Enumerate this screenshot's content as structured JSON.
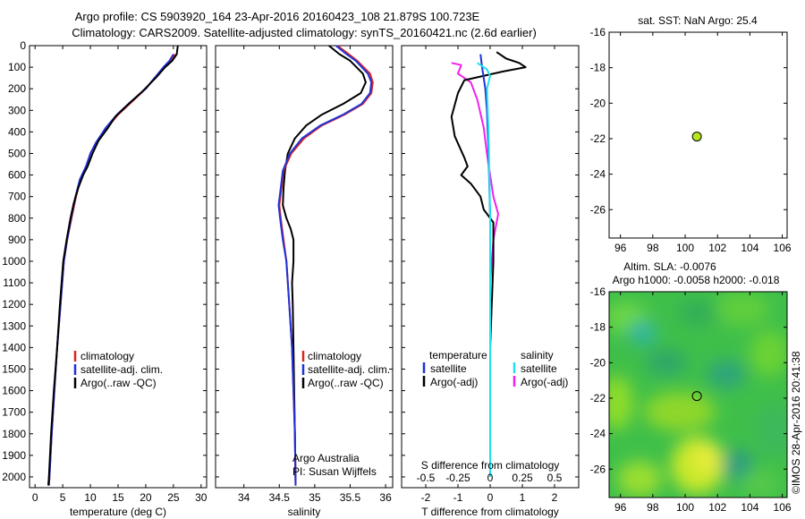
{
  "title": {
    "line1": "Argo profile: CS 5903920_164 23-Apr-2016 20160423_108 21.879S 100.723E",
    "line2": "Climatology: CARS2009. Satellite-adjusted climatology: synTS_20160421.nc (2.6d earlier)"
  },
  "colors": {
    "climatology": "#dd2222",
    "satellite": "#1f33d8",
    "argo": "#000000",
    "sal_satellite": "#22e0ee",
    "sal_argo": "#ee22ee",
    "marker": "#b5e61d"
  },
  "chart_data": [
    {
      "type": "line",
      "id": "temperature",
      "xlabel": "temperature (deg C)",
      "ylabel": "",
      "xlim": [
        -1,
        31
      ],
      "ylim": [
        2050,
        0
      ],
      "xticks": [
        0,
        5,
        10,
        15,
        20,
        25,
        30
      ],
      "yticks": [
        0,
        100,
        200,
        300,
        400,
        500,
        600,
        700,
        800,
        900,
        1000,
        1100,
        1200,
        1300,
        1400,
        1500,
        1600,
        1700,
        1800,
        1900,
        2000
      ],
      "legend": [
        "climatology",
        "satellite-adj. clim.",
        "Argo(..raw -QC)"
      ],
      "series": [
        {
          "name": "climatology",
          "points": [
            [
              25.3,
              40
            ],
            [
              24.5,
              70
            ],
            [
              23.3,
              100
            ],
            [
              21.6,
              150
            ],
            [
              20,
              200
            ],
            [
              17.5,
              260
            ],
            [
              15,
              320
            ],
            [
              13,
              380
            ],
            [
              11,
              450
            ],
            [
              10,
              500
            ],
            [
              9.3,
              560
            ],
            [
              8.2,
              620
            ],
            [
              7.4,
              700
            ],
            [
              6.6,
              800
            ],
            [
              5.8,
              900
            ],
            [
              5.2,
              1000
            ],
            [
              4.6,
              1200
            ],
            [
              4,
              1400
            ],
            [
              3.5,
              1600
            ],
            [
              3,
              1800
            ],
            [
              2.6,
              2000
            ],
            [
              2.5,
              2040
            ]
          ]
        },
        {
          "name": "satellite-adj. clim.",
          "points": [
            [
              25,
              40
            ],
            [
              24.3,
              70
            ],
            [
              23.2,
              100
            ],
            [
              21.6,
              150
            ],
            [
              20,
              200
            ],
            [
              17.3,
              260
            ],
            [
              14.8,
              320
            ],
            [
              12.8,
              380
            ],
            [
              11,
              450
            ],
            [
              10,
              500
            ],
            [
              9.2,
              560
            ],
            [
              8.1,
              620
            ],
            [
              7.3,
              700
            ],
            [
              6.5,
              800
            ],
            [
              5.8,
              900
            ],
            [
              5.2,
              1000
            ],
            [
              4.6,
              1200
            ],
            [
              4,
              1400
            ],
            [
              3.5,
              1600
            ],
            [
              3,
              1800
            ],
            [
              2.6,
              2000
            ],
            [
              2.5,
              2040
            ]
          ]
        },
        {
          "name": "Argo(..raw -QC)",
          "points": [
            [
              25.8,
              0
            ],
            [
              25.6,
              40
            ],
            [
              24.8,
              70
            ],
            [
              23.5,
              100
            ],
            [
              21.8,
              150
            ],
            [
              19.5,
              210
            ],
            [
              16.5,
              280
            ],
            [
              14.5,
              330
            ],
            [
              13.2,
              380
            ],
            [
              11.5,
              440
            ],
            [
              10.4,
              500
            ],
            [
              9.5,
              560
            ],
            [
              8.7,
              600
            ],
            [
              7.8,
              660
            ],
            [
              7,
              730
            ],
            [
              6.4,
              800
            ],
            [
              5.7,
              900
            ],
            [
              5.1,
              1000
            ],
            [
              4.5,
              1200
            ],
            [
              4,
              1400
            ],
            [
              3.4,
              1600
            ],
            [
              2.9,
              1800
            ],
            [
              2.5,
              2000
            ],
            [
              2.4,
              2040
            ]
          ]
        }
      ]
    },
    {
      "type": "line",
      "id": "salinity",
      "xlabel": "salinity",
      "xlim": [
        33.6,
        36.1
      ],
      "ylim": [
        2050,
        0
      ],
      "xticks": [
        34,
        34.5,
        35,
        35.5,
        36
      ],
      "legend": [
        "climatology",
        "satellite-adj. clim.",
        "Argo(..raw -QC)"
      ],
      "annotation": [
        "Argo Australia",
        "PI: Susan Wijffels"
      ],
      "series": [
        {
          "name": "climatology",
          "points": [
            [
              35.32,
              0
            ],
            [
              35.48,
              40
            ],
            [
              35.6,
              70
            ],
            [
              35.78,
              130
            ],
            [
              35.82,
              170
            ],
            [
              35.8,
              220
            ],
            [
              35.68,
              270
            ],
            [
              35.42,
              320
            ],
            [
              35.1,
              370
            ],
            [
              34.85,
              430
            ],
            [
              34.67,
              500
            ],
            [
              34.56,
              580
            ],
            [
              34.53,
              660
            ],
            [
              34.5,
              740
            ],
            [
              34.52,
              800
            ],
            [
              34.56,
              900
            ],
            [
              34.6,
              1000
            ],
            [
              34.64,
              1200
            ],
            [
              34.68,
              1400
            ],
            [
              34.7,
              1600
            ],
            [
              34.72,
              1800
            ],
            [
              34.73,
              2040
            ]
          ]
        },
        {
          "name": "satellite-adj. clim.",
          "points": [
            [
              35.3,
              0
            ],
            [
              35.45,
              40
            ],
            [
              35.58,
              70
            ],
            [
              35.75,
              130
            ],
            [
              35.8,
              170
            ],
            [
              35.78,
              220
            ],
            [
              35.66,
              270
            ],
            [
              35.4,
              320
            ],
            [
              35.08,
              370
            ],
            [
              34.82,
              430
            ],
            [
              34.65,
              500
            ],
            [
              34.55,
              580
            ],
            [
              34.52,
              660
            ],
            [
              34.49,
              740
            ],
            [
              34.51,
              800
            ],
            [
              34.55,
              900
            ],
            [
              34.6,
              1000
            ],
            [
              34.64,
              1200
            ],
            [
              34.68,
              1400
            ],
            [
              34.7,
              1600
            ],
            [
              34.72,
              1800
            ],
            [
              34.73,
              2040
            ]
          ]
        },
        {
          "name": "Argo(..raw -QC)",
          "points": [
            [
              35.2,
              0
            ],
            [
              35.35,
              40
            ],
            [
              35.5,
              70
            ],
            [
              35.68,
              130
            ],
            [
              35.72,
              170
            ],
            [
              35.65,
              220
            ],
            [
              35.4,
              270
            ],
            [
              35.1,
              320
            ],
            [
              34.88,
              370
            ],
            [
              34.72,
              430
            ],
            [
              34.62,
              500
            ],
            [
              34.58,
              580
            ],
            [
              34.56,
              660
            ],
            [
              34.55,
              740
            ],
            [
              34.6,
              800
            ],
            [
              34.66,
              850
            ],
            [
              34.7,
              900
            ],
            [
              34.7,
              1000
            ],
            [
              34.68,
              1100
            ],
            [
              34.69,
              1200
            ],
            [
              34.7,
              1400
            ],
            [
              34.71,
              1600
            ],
            [
              34.72,
              1800
            ],
            [
              34.73,
              2040
            ]
          ]
        }
      ]
    },
    {
      "type": "line",
      "id": "differences",
      "xlabel": "T difference from climatology",
      "xlabel_top": "S difference from climatology",
      "xlim": [
        -2.75,
        2.75
      ],
      "ylim": [
        2050,
        0
      ],
      "xticks_T": [
        -2,
        -1,
        0,
        1,
        2
      ],
      "xticks_S_labels": [
        "-0.5",
        "-0.25",
        "0",
        "0.25",
        "0.5"
      ],
      "xticks_S_T_positions": [
        -2,
        -1,
        0,
        1,
        2
      ],
      "legend": {
        "temperature_header": "temperature",
        "salinity_header": "salinity",
        "satellite": "satellite",
        "argo": "Argo(-adj)"
      },
      "series": [
        {
          "name": "temperature satellite",
          "points": [
            [
              -0.3,
              40
            ],
            [
              -0.25,
              100
            ],
            [
              -0.15,
              200
            ],
            [
              -0.1,
              300
            ],
            [
              -0.05,
              500
            ],
            [
              0,
              800
            ],
            [
              0,
              1200
            ],
            [
              0,
              2000
            ]
          ]
        },
        {
          "name": "temperature Argo(-adj)",
          "points": [
            [
              0.2,
              30
            ],
            [
              0.5,
              60
            ],
            [
              0.9,
              80
            ],
            [
              1.1,
              100
            ],
            [
              0.4,
              120
            ],
            [
              -0.8,
              160
            ],
            [
              -1,
              220
            ],
            [
              -1.2,
              330
            ],
            [
              -1.1,
              420
            ],
            [
              -0.8,
              520
            ],
            [
              -0.7,
              560
            ],
            [
              -0.9,
              600
            ],
            [
              -0.6,
              640
            ],
            [
              -0.3,
              700
            ],
            [
              -0.2,
              760
            ],
            [
              0.1,
              820
            ],
            [
              0.1,
              1000
            ],
            [
              0.05,
              1200
            ],
            [
              0,
              1400
            ],
            [
              0,
              2000
            ]
          ]
        },
        {
          "name": "salinity satellite",
          "points": [
            [
              -0.4,
              80
            ],
            [
              -0.1,
              110
            ],
            [
              0,
              140
            ],
            [
              -0.1,
              200
            ],
            [
              -0.05,
              400
            ],
            [
              0,
              800
            ],
            [
              0,
              2000
            ]
          ]
        },
        {
          "name": "salinity Argo(-adj)",
          "points": [
            [
              -1.2,
              80
            ],
            [
              -0.9,
              90
            ],
            [
              -1,
              130
            ],
            [
              -0.6,
              170
            ],
            [
              -0.4,
              250
            ],
            [
              -0.2,
              380
            ],
            [
              -0.1,
              500
            ],
            [
              0,
              600
            ],
            [
              0.1,
              700
            ],
            [
              0.25,
              780
            ],
            [
              0.1,
              900
            ],
            [
              0,
              1100
            ],
            [
              0,
              2000
            ]
          ]
        }
      ]
    },
    {
      "type": "scatter",
      "id": "sst-map",
      "title": "sat. SST: NaN Argo: 25.4",
      "xlim": [
        95.3,
        106.3
      ],
      "ylim": [
        -27.6,
        -16
      ],
      "xticks": [
        96,
        98,
        100,
        102,
        104,
        106
      ],
      "yticks": [
        -16,
        -18,
        -20,
        -22,
        -24,
        -26
      ],
      "points": [
        [
          100.723,
          -21.879
        ]
      ]
    },
    {
      "type": "heatmap",
      "id": "sla-map",
      "title_line1": "Altim. SLA: -0.0076",
      "title_line2": "Argo h1000: -0.0058 h2000: -0.018",
      "xlim": [
        95.3,
        106.3
      ],
      "ylim": [
        -27.6,
        -16
      ],
      "xticks": [
        96,
        98,
        100,
        102,
        104,
        106
      ],
      "yticks": [
        -16,
        -18,
        -20,
        -22,
        -24,
        -26
      ],
      "points": [
        [
          100.723,
          -21.879
        ]
      ]
    }
  ],
  "credit": "©IMOS 28-Apr-2016 20:41:38"
}
